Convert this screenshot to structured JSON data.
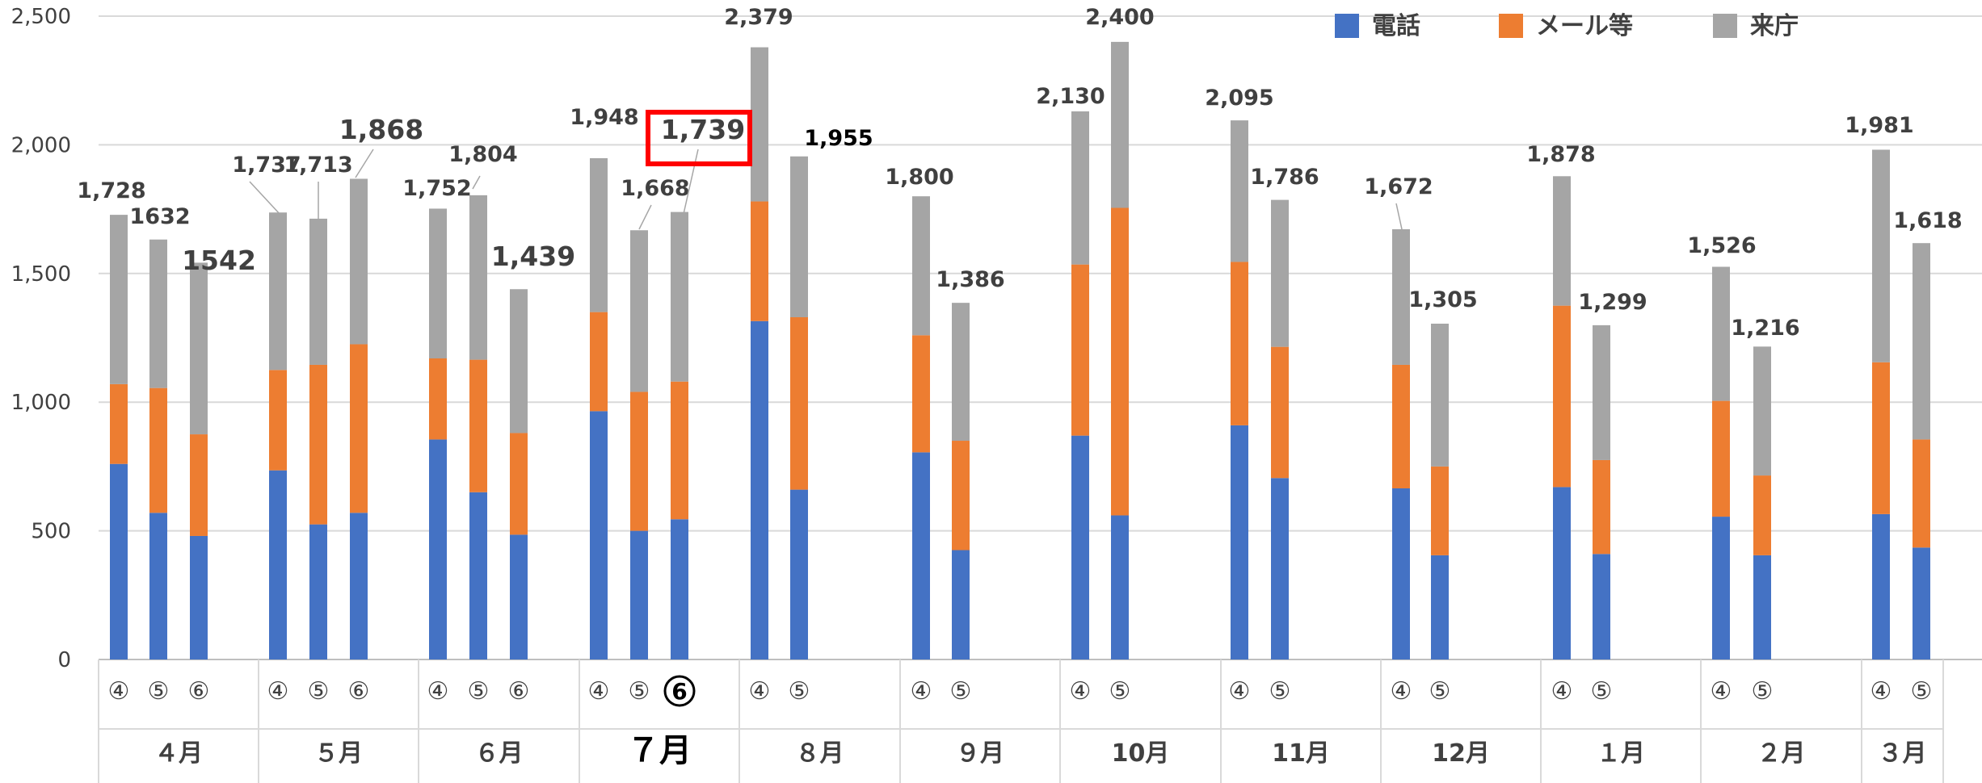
{
  "chart_data": {
    "type": "bar",
    "stacked": true,
    "ylim": [
      0,
      2500
    ],
    "yticks": [
      "0",
      "500",
      "1,000",
      "1,500",
      "2,000",
      "2,500"
    ],
    "grid": true,
    "legend_position": "top-right",
    "series": [
      {
        "name": "電話",
        "color": "#4472C4"
      },
      {
        "name": "メール等",
        "color": "#ED7D31"
      },
      {
        "name": "来庁",
        "color": "#A5A5A5"
      }
    ],
    "groups": [
      {
        "month": "４月",
        "highlight": false,
        "bars": [
          {
            "label": "④",
            "values": [
              760,
              310,
              658
            ],
            "total_label": "1,728"
          },
          {
            "label": "⑤",
            "values": [
              570,
              485,
              577
            ],
            "total_label": "1632"
          },
          {
            "label": "⑥",
            "values": [
              480,
              395,
              667
            ],
            "total_label": "1542"
          }
        ]
      },
      {
        "month": "５月",
        "highlight": false,
        "bars": [
          {
            "label": "④",
            "values": [
              735,
              390,
              612
            ],
            "total_label": "1,737"
          },
          {
            "label": "⑤",
            "values": [
              525,
              620,
              568
            ],
            "total_label": "1,713"
          },
          {
            "label": "⑥",
            "values": [
              570,
              655,
              643
            ],
            "total_label": "1,868"
          }
        ]
      },
      {
        "month": "６月",
        "highlight": false,
        "bars": [
          {
            "label": "④",
            "values": [
              855,
              315,
              582
            ],
            "total_label": "1,752"
          },
          {
            "label": "⑤",
            "values": [
              650,
              515,
              639
            ],
            "total_label": "1,804"
          },
          {
            "label": "⑥",
            "values": [
              485,
              395,
              559
            ],
            "total_label": "1,439"
          }
        ]
      },
      {
        "month": "７月",
        "highlight": true,
        "bars": [
          {
            "label": "④",
            "values": [
              965,
              385,
              598
            ],
            "total_label": "1,948"
          },
          {
            "label": "⑤",
            "values": [
              500,
              540,
              628
            ],
            "total_label": "1,668"
          },
          {
            "label": "⑥",
            "values": [
              545,
              535,
              659
            ],
            "total_label": "1,739"
          }
        ]
      },
      {
        "month": "８月",
        "highlight": false,
        "bars": [
          {
            "label": "④",
            "values": [
              1315,
              465,
              599
            ],
            "total_label": "2,379"
          },
          {
            "label": "⑤",
            "values": [
              660,
              670,
              625
            ],
            "total_label": "1,955"
          }
        ]
      },
      {
        "month": "９月",
        "highlight": false,
        "bars": [
          {
            "label": "④",
            "values": [
              805,
              455,
              540
            ],
            "total_label": "1,800"
          },
          {
            "label": "⑤",
            "values": [
              425,
              425,
              536
            ],
            "total_label": "1,386"
          }
        ]
      },
      {
        "month": "10月",
        "highlight": false,
        "bars": [
          {
            "label": "④",
            "values": [
              870,
              665,
              595
            ],
            "total_label": "2,130"
          },
          {
            "label": "⑤",
            "values": [
              560,
              1195,
              645
            ],
            "total_label": "2,400"
          }
        ]
      },
      {
        "month": "11月",
        "highlight": false,
        "bars": [
          {
            "label": "④",
            "values": [
              910,
              635,
              550
            ],
            "total_label": "2,095"
          },
          {
            "label": "⑤",
            "values": [
              705,
              510,
              571
            ],
            "total_label": "1,786"
          }
        ]
      },
      {
        "month": "12月",
        "highlight": false,
        "bars": [
          {
            "label": "④",
            "values": [
              665,
              480,
              527
            ],
            "total_label": "1,672"
          },
          {
            "label": "⑤",
            "values": [
              405,
              345,
              555
            ],
            "total_label": "1,305"
          }
        ]
      },
      {
        "month": "１月",
        "highlight": false,
        "bars": [
          {
            "label": "④",
            "values": [
              670,
              705,
              503
            ],
            "total_label": "1,878"
          },
          {
            "label": "⑤",
            "values": [
              410,
              365,
              524
            ],
            "total_label": "1,299"
          }
        ]
      },
      {
        "month": "２月",
        "highlight": false,
        "bars": [
          {
            "label": "④",
            "values": [
              555,
              450,
              521
            ],
            "total_label": "1,526"
          },
          {
            "label": "⑤",
            "values": [
              405,
              310,
              501
            ],
            "total_label": "1,216"
          }
        ]
      },
      {
        "month": "３月",
        "highlight": false,
        "bars": [
          {
            "label": "④",
            "values": [
              565,
              590,
              826
            ],
            "total_label": "1,981"
          },
          {
            "label": "⑤",
            "values": [
              435,
              420,
              763
            ],
            "total_label": "1,618"
          }
        ]
      }
    ]
  }
}
